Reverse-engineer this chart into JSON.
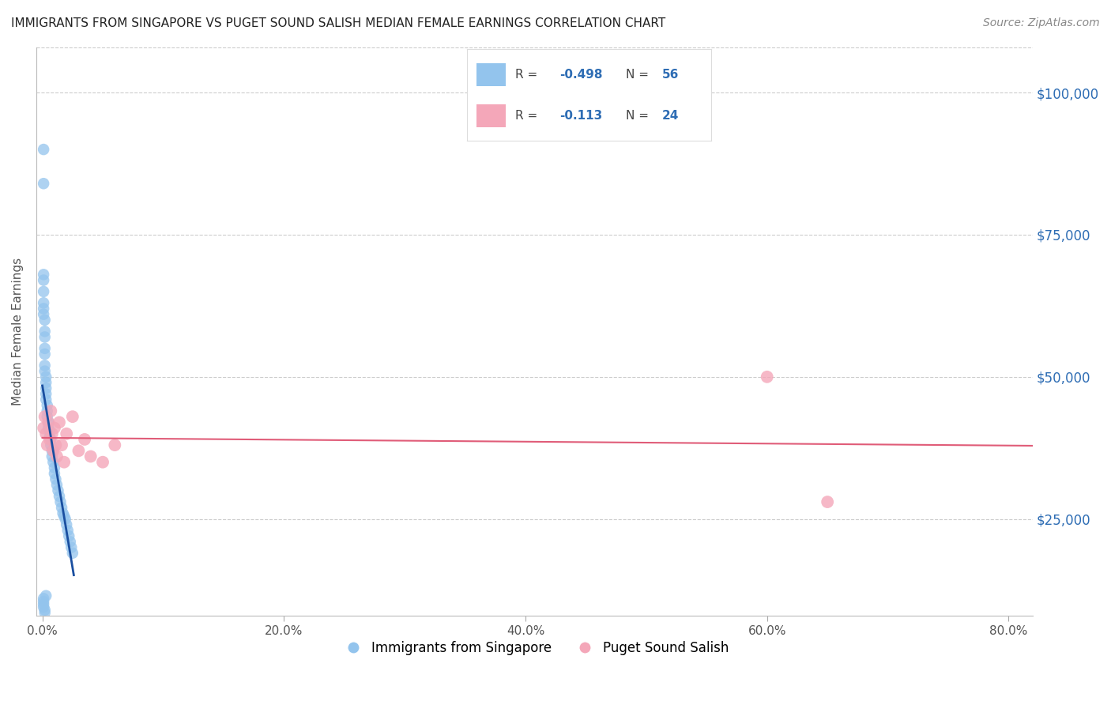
{
  "title": "IMMIGRANTS FROM SINGAPORE VS PUGET SOUND SALISH MEDIAN FEMALE EARNINGS CORRELATION CHART",
  "source": "Source: ZipAtlas.com",
  "ylabel": "Median Female Earnings",
  "xlabel_ticks": [
    "0.0%",
    "20.0%",
    "40.0%",
    "60.0%",
    "80.0%"
  ],
  "xlabel_vals": [
    0.0,
    0.2,
    0.4,
    0.6,
    0.8
  ],
  "ylabel_ticks": [
    "$25,000",
    "$50,000",
    "$75,000",
    "$100,000"
  ],
  "ylabel_vals": [
    25000,
    50000,
    75000,
    100000
  ],
  "xlim": [
    -0.005,
    0.82
  ],
  "ylim": [
    8000,
    108000
  ],
  "legend_label1": "Immigrants from Singapore",
  "legend_label2": "Puget Sound Salish",
  "r1": "-0.498",
  "n1": "56",
  "r2": "-0.113",
  "n2": "24",
  "color1": "#93c4ed",
  "color2": "#f4a7b9",
  "line_color1": "#1a4fa0",
  "line_color2": "#e05c78",
  "background_color": "#ffffff",
  "grid_color": "#cccccc",
  "blue_x": [
    0.001,
    0.001,
    0.001,
    0.001,
    0.001,
    0.001,
    0.001,
    0.001,
    0.002,
    0.002,
    0.002,
    0.002,
    0.002,
    0.002,
    0.002,
    0.003,
    0.003,
    0.003,
    0.003,
    0.003,
    0.004,
    0.004,
    0.004,
    0.005,
    0.005,
    0.006,
    0.006,
    0.007,
    0.007,
    0.008,
    0.008,
    0.009,
    0.01,
    0.01,
    0.011,
    0.012,
    0.013,
    0.014,
    0.015,
    0.016,
    0.017,
    0.018,
    0.019,
    0.02,
    0.021,
    0.022,
    0.023,
    0.024,
    0.025,
    0.001,
    0.001,
    0.001,
    0.001,
    0.002,
    0.002,
    0.003
  ],
  "blue_y": [
    90000,
    84000,
    68000,
    67000,
    65000,
    63000,
    62000,
    61000,
    60000,
    58000,
    57000,
    55000,
    54000,
    52000,
    51000,
    50000,
    49000,
    48000,
    47000,
    46000,
    45000,
    44000,
    43000,
    42000,
    41000,
    40500,
    39500,
    39000,
    38000,
    37000,
    36000,
    35000,
    34000,
    33000,
    32000,
    31000,
    30000,
    29000,
    28000,
    27000,
    26000,
    25500,
    25000,
    24000,
    23000,
    22000,
    21000,
    20000,
    19000,
    11000,
    10500,
    10000,
    9500,
    9000,
    8500,
    11500
  ],
  "pink_x": [
    0.001,
    0.002,
    0.003,
    0.004,
    0.005,
    0.006,
    0.007,
    0.008,
    0.009,
    0.01,
    0.011,
    0.012,
    0.014,
    0.016,
    0.018,
    0.02,
    0.025,
    0.03,
    0.035,
    0.04,
    0.05,
    0.06,
    0.6,
    0.65
  ],
  "pink_y": [
    41000,
    43000,
    40000,
    38000,
    42000,
    39000,
    44000,
    40000,
    37000,
    41000,
    38000,
    36000,
    42000,
    38000,
    35000,
    40000,
    43000,
    37000,
    39000,
    36000,
    35000,
    38000,
    50000,
    28000
  ]
}
